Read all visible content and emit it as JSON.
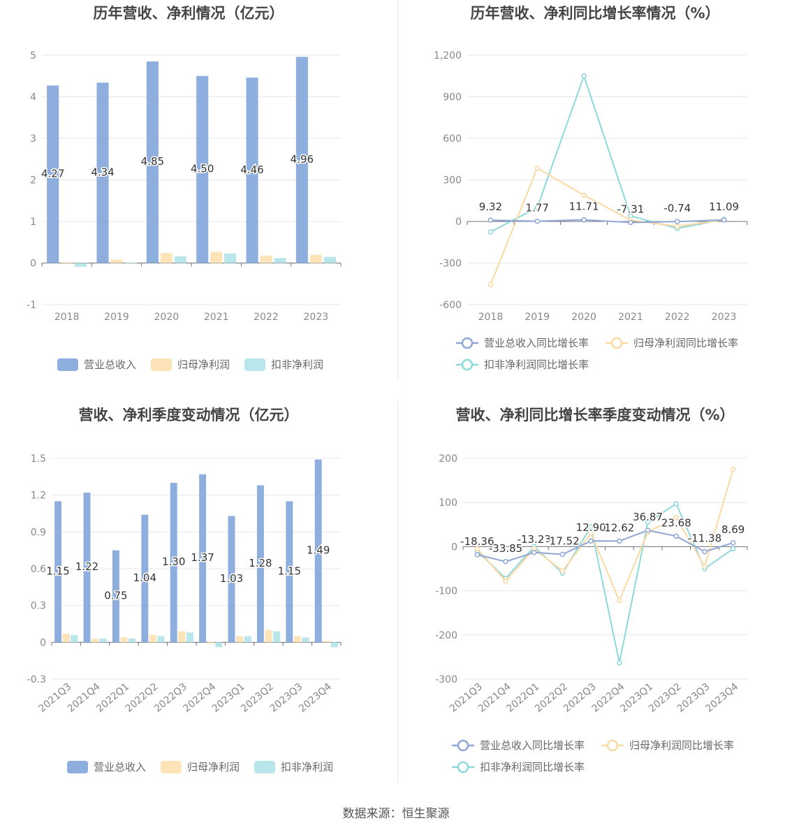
{
  "source": "数据来源：恒生聚源",
  "colors": {
    "revenue": "#8eaedd",
    "net_profit": "#fde3b8",
    "deducted": "#b9e6ea",
    "revenue_line": "#8fa6d6",
    "net_line": "#fcd9a2",
    "deducted_line": "#8dd8db"
  },
  "legend": {
    "bars": [
      "营业总收入",
      "归母净利润",
      "扣非净利润"
    ],
    "lines": [
      "营业总收入同比增长率",
      "归母净利润同比增长率",
      "扣非净利润同比增长率"
    ]
  },
  "chart_data": [
    {
      "id": "annual-bar",
      "type": "bar",
      "title": "历年营收、净利情况（亿元）",
      "categories": [
        "2018",
        "2019",
        "2020",
        "2021",
        "2022",
        "2023"
      ],
      "ylim": [
        -1,
        5
      ],
      "yticks": [
        -1,
        0,
        1,
        2,
        3,
        4,
        5
      ],
      "ytick_labels": [
        "-1",
        "0",
        "1",
        "2",
        "3",
        "4",
        "5"
      ],
      "series": [
        {
          "name": "营业总收入",
          "values": [
            4.27,
            4.34,
            4.85,
            4.5,
            4.46,
            4.96
          ],
          "labels": [
            "4.27",
            "4.34",
            "4.85",
            "4.50",
            "4.46",
            "4.96"
          ]
        },
        {
          "name": "归母净利润",
          "values": [
            -0.02,
            0.08,
            0.24,
            0.27,
            0.18,
            0.2
          ]
        },
        {
          "name": "扣非净利润",
          "values": [
            -0.09,
            -0.01,
            0.16,
            0.23,
            0.12,
            0.15
          ]
        }
      ]
    },
    {
      "id": "annual-line",
      "type": "line",
      "title": "历年营收、净利同比增长率情况（%）",
      "categories": [
        "2018",
        "2019",
        "2020",
        "2021",
        "2022",
        "2023"
      ],
      "ylim": [
        -600,
        1200
      ],
      "yticks": [
        -600,
        -300,
        0,
        300,
        600,
        900,
        1200
      ],
      "ytick_labels": [
        "-600",
        "-300",
        "0",
        "300",
        "600",
        "900",
        "1,200"
      ],
      "series": [
        {
          "name": "营业总收入同比增长率",
          "values": [
            9.32,
            1.77,
            11.71,
            -7.31,
            -0.74,
            11.09
          ],
          "labels": [
            "9.32",
            "1.77",
            "11.71",
            "-7.31",
            "-0.74",
            "11.09"
          ]
        },
        {
          "name": "归母净利润同比增长率",
          "values": [
            -455,
            385,
            190,
            10,
            -35,
            12
          ]
        },
        {
          "name": "扣非净利润同比增长率",
          "values": [
            -75,
            100,
            1050,
            40,
            -50,
            15
          ]
        }
      ]
    },
    {
      "id": "quarter-bar",
      "type": "bar",
      "title": "营收、净利季度变动情况（亿元）",
      "categories": [
        "2021Q3",
        "2021Q4",
        "2022Q1",
        "2022Q2",
        "2022Q3",
        "2022Q4",
        "2023Q1",
        "2023Q2",
        "2023Q3",
        "2023Q4"
      ],
      "ylim": [
        -0.3,
        1.5
      ],
      "yticks": [
        -0.3,
        0,
        0.3,
        0.6,
        0.9,
        1.2,
        1.5
      ],
      "ytick_labels": [
        "-0.3",
        "0",
        "0.3",
        "0.6",
        "0.9",
        "1.2",
        "1.5"
      ],
      "series": [
        {
          "name": "营业总收入",
          "values": [
            1.15,
            1.22,
            0.75,
            1.04,
            1.3,
            1.37,
            1.03,
            1.28,
            1.15,
            1.49
          ],
          "labels": [
            "1.15",
            "1.22",
            "0.75",
            "1.04",
            "1.30",
            "1.37",
            "1.03",
            "1.28",
            "1.15",
            "1.49"
          ]
        },
        {
          "name": "归母净利润",
          "values": [
            0.07,
            0.03,
            0.04,
            0.06,
            0.09,
            -0.01,
            0.05,
            0.1,
            0.05,
            0.01
          ]
        },
        {
          "name": "扣非净利润",
          "values": [
            0.06,
            0.03,
            0.03,
            0.05,
            0.08,
            -0.04,
            0.05,
            0.09,
            0.04,
            -0.04
          ]
        }
      ]
    },
    {
      "id": "quarter-line",
      "type": "line",
      "title": "营收、净利同比增长率季度变动情况（%）",
      "categories": [
        "2021Q3",
        "2021Q4",
        "2022Q1",
        "2022Q2",
        "2022Q3",
        "2022Q4",
        "2023Q1",
        "2023Q2",
        "2023Q3",
        "2023Q4"
      ],
      "ylim": [
        -300,
        200
      ],
      "yticks": [
        -300,
        -200,
        -100,
        0,
        100,
        200
      ],
      "ytick_labels": [
        "-300",
        "-200",
        "-100",
        "0",
        "100",
        "200"
      ],
      "series": [
        {
          "name": "营业总收入同比增长率",
          "values": [
            -18.36,
            -33.85,
            -13.23,
            -17.52,
            12.9,
            12.62,
            36.87,
            23.68,
            -11.38,
            8.69
          ],
          "labels": [
            "-18.36",
            "-33.85",
            "-13.23",
            "-17.52",
            "12.90",
            "12.62",
            "36.87",
            "23.68",
            "-11.38",
            "8.69"
          ]
        },
        {
          "name": "归母净利润同比增长率",
          "values": [
            -5,
            -78,
            -5,
            -55,
            30,
            -122,
            33,
            66,
            -45,
            175
          ]
        },
        {
          "name": "扣非净利润同比增长率",
          "values": [
            -10,
            -72,
            0,
            -60,
            45,
            -263,
            55,
            97,
            -50,
            -5
          ]
        }
      ]
    }
  ]
}
